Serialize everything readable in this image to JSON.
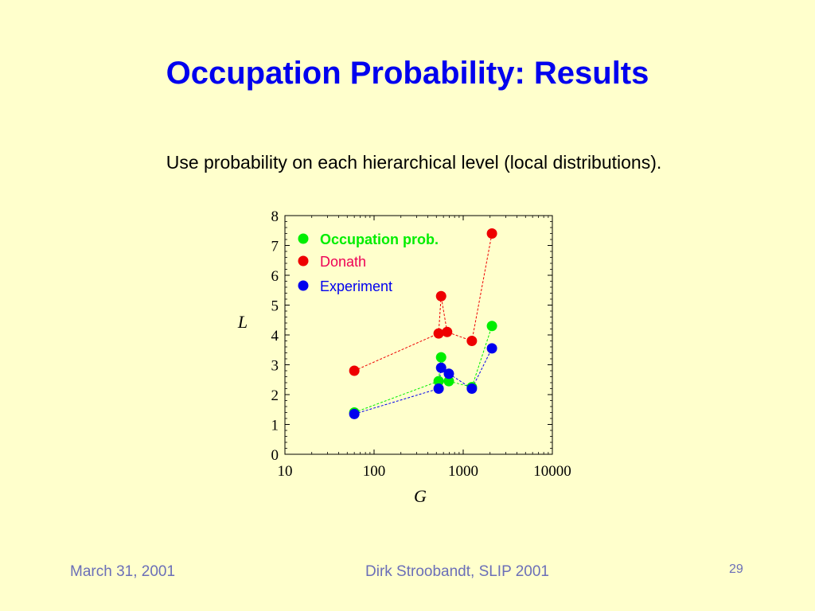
{
  "slide": {
    "title": "Occupation Probability: Results",
    "subtitle": "Use probability on each hierarchical level (local distributions).",
    "footer_date": "March 31, 2001",
    "footer_author": "Dirk Stroobandt, SLIP 2001",
    "page_number": "29"
  },
  "colors": {
    "background": "#ffffcc",
    "title": "#0000ee",
    "footer": "#6b6fb8"
  },
  "chart_data": {
    "type": "scatter",
    "xlabel": "G",
    "ylabel": "L",
    "xscale": "log",
    "xlim": [
      10,
      10000
    ],
    "ylim": [
      0,
      8
    ],
    "xticks": [
      "10",
      "100",
      "1000",
      "10000"
    ],
    "yticks": [
      "0",
      "1",
      "2",
      "3",
      "4",
      "5",
      "6",
      "7",
      "8"
    ],
    "legend_position": "top-left",
    "series": [
      {
        "name": "Occupation prob.",
        "color": "#00ee00",
        "label_color": "#00ee00",
        "bold": true,
        "points": [
          [
            60,
            1.4
          ],
          [
            530,
            2.45
          ],
          [
            565,
            3.25
          ],
          [
            690,
            2.45
          ],
          [
            1250,
            2.25
          ],
          [
            2100,
            4.3
          ]
        ]
      },
      {
        "name": "Donath",
        "color": "#ee0000",
        "label_color": "#ee0055",
        "bold": false,
        "points": [
          [
            60,
            2.8
          ],
          [
            530,
            4.05
          ],
          [
            565,
            5.3
          ],
          [
            660,
            4.1
          ],
          [
            1250,
            3.8
          ],
          [
            2100,
            7.4
          ]
        ]
      },
      {
        "name": "Experiment",
        "color": "#0000ee",
        "label_color": "#0000ee",
        "bold": false,
        "points": [
          [
            60,
            1.35
          ],
          [
            530,
            2.2
          ],
          [
            565,
            2.9
          ],
          [
            690,
            2.7
          ],
          [
            1250,
            2.2
          ],
          [
            2100,
            3.55
          ]
        ]
      }
    ]
  }
}
